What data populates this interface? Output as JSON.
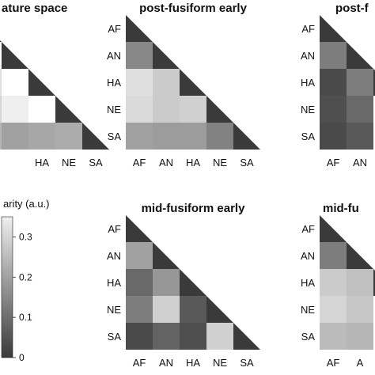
{
  "chart_data": {
    "type": "heatmap",
    "shared": {
      "categories": [
        "AF",
        "AN",
        "HA",
        "NE",
        "SA"
      ],
      "lower_triangle_only": true,
      "diagonal_color": "#3a3a3a",
      "colormap": {
        "low_color": "#3a3a3a",
        "high_color": "#efefef",
        "range": [
          0,
          0.35
        ]
      }
    },
    "colorbar": {
      "label": "arity  (a.u.)",
      "ticks": [
        "0.3",
        "0.2",
        "0.1",
        "0"
      ],
      "tick_values": [
        0.3,
        0.2,
        0.1,
        0
      ],
      "range": [
        0,
        0.35
      ]
    },
    "panels": [
      {
        "title": "ature space",
        "x_ticks": [
          "HA",
          "NE",
          "SA"
        ],
        "y_ticks": [],
        "cells": [
          {
            "row": "HA",
            "col": "AF",
            "value": 0.32
          },
          {
            "row": "NE",
            "col": "AF",
            "value": 0.3
          },
          {
            "row": "NE",
            "col": "AN",
            "value": 0.36
          },
          {
            "row": "SA",
            "col": "AF",
            "value": 0.24
          },
          {
            "row": "SA",
            "col": "AN",
            "value": 0.2
          },
          {
            "row": "SA",
            "col": "HA",
            "value": 0.21
          },
          {
            "row": "SA",
            "col": "NE",
            "value": 0.22
          }
        ]
      },
      {
        "title": "post-fusiform early",
        "x_ticks": [
          "AF",
          "AN",
          "HA",
          "NE",
          "SA"
        ],
        "y_ticks": [
          "AF",
          "AN",
          "HA",
          "NE",
          "SA"
        ],
        "cells": [
          {
            "row": "AN",
            "col": "AF",
            "value": 0.15
          },
          {
            "row": "HA",
            "col": "AF",
            "value": 0.32
          },
          {
            "row": "HA",
            "col": "AN",
            "value": 0.28
          },
          {
            "row": "NE",
            "col": "AF",
            "value": 0.31
          },
          {
            "row": "NE",
            "col": "AN",
            "value": 0.28
          },
          {
            "row": "NE",
            "col": "HA",
            "value": 0.29
          },
          {
            "row": "SA",
            "col": "AF",
            "value": 0.2
          },
          {
            "row": "SA",
            "col": "AN",
            "value": 0.19
          },
          {
            "row": "SA",
            "col": "HA",
            "value": 0.19
          },
          {
            "row": "SA",
            "col": "NE",
            "value": 0.14
          }
        ]
      },
      {
        "title": "post-f",
        "x_ticks": [
          "AF",
          "AN"
        ],
        "y_ticks": [
          "AF",
          "AN",
          "HA",
          "NE",
          "SA"
        ],
        "cells": [
          {
            "row": "AN",
            "col": "AF",
            "value": 0.13
          },
          {
            "row": "HA",
            "col": "AF",
            "value": 0.03
          },
          {
            "row": "HA",
            "col": "AN",
            "value": 0.13
          },
          {
            "row": "NE",
            "col": "AF",
            "value": 0.04
          },
          {
            "row": "NE",
            "col": "AN",
            "value": 0.09
          },
          {
            "row": "SA",
            "col": "AF",
            "value": 0.03
          },
          {
            "row": "SA",
            "col": "AN",
            "value": 0.06
          }
        ]
      },
      {
        "title": "mid-fusiform early",
        "x_ticks": [
          "AF",
          "AN",
          "HA",
          "NE",
          "SA"
        ],
        "y_ticks": [
          "AF",
          "AN",
          "HA",
          "NE",
          "SA"
        ],
        "cells": [
          {
            "row": "AN",
            "col": "AF",
            "value": 0.2
          },
          {
            "row": "HA",
            "col": "AF",
            "value": 0.09
          },
          {
            "row": "HA",
            "col": "AN",
            "value": 0.18
          },
          {
            "row": "NE",
            "col": "AF",
            "value": 0.13
          },
          {
            "row": "NE",
            "col": "AN",
            "value": 0.29
          },
          {
            "row": "NE",
            "col": "HA",
            "value": 0.06
          },
          {
            "row": "SA",
            "col": "AF",
            "value": 0.03
          },
          {
            "row": "SA",
            "col": "AN",
            "value": 0.08
          },
          {
            "row": "SA",
            "col": "HA",
            "value": 0.04
          },
          {
            "row": "SA",
            "col": "NE",
            "value": 0.29
          }
        ]
      },
      {
        "title": "mid-fu",
        "x_ticks": [
          "AF",
          "A"
        ],
        "y_ticks": [
          "AF",
          "AN",
          "HA",
          "NE",
          "SA"
        ],
        "cells": [
          {
            "row": "AN",
            "col": "AF",
            "value": 0.13
          },
          {
            "row": "HA",
            "col": "AF",
            "value": 0.28
          },
          {
            "row": "HA",
            "col": "AN",
            "value": 0.26
          },
          {
            "row": "NE",
            "col": "AF",
            "value": 0.3
          },
          {
            "row": "NE",
            "col": "AN",
            "value": 0.27
          },
          {
            "row": "SA",
            "col": "AF",
            "value": 0.25
          },
          {
            "row": "SA",
            "col": "AN",
            "value": 0.24
          }
        ]
      }
    ]
  }
}
